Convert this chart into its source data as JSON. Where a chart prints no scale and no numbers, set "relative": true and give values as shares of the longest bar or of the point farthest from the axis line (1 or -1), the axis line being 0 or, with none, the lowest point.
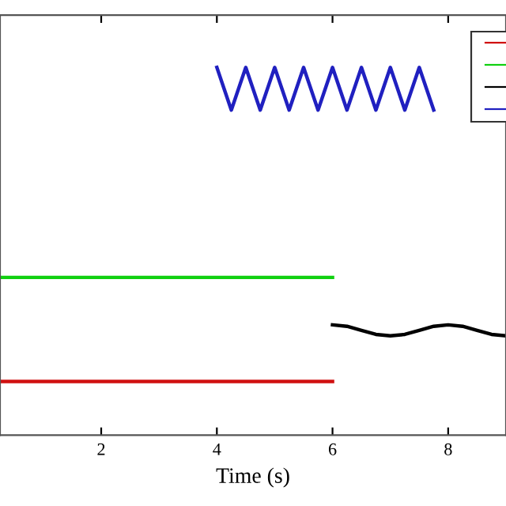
{
  "chart_data": {
    "type": "line",
    "relative": true,
    "xlabel": "Time (s)",
    "xlim": [
      0.25,
      9.0
    ],
    "xticks": [
      2,
      4,
      6,
      8
    ],
    "grid": false,
    "line_style": "solid",
    "series": [
      {
        "color": "#d01010",
        "x": [
          0.25,
          6.0
        ],
        "values": [
          0.146,
          0.146
        ]
      },
      {
        "color": "#10d010",
        "x": [
          0.25,
          6.0
        ],
        "values": [
          0.429,
          0.429
        ]
      },
      {
        "color": "#000000",
        "x": [
          6.0,
          6.25,
          6.5,
          6.75,
          7.0,
          7.25,
          7.5,
          7.75,
          8.0,
          8.25,
          8.5,
          8.75,
          9.0
        ],
        "values": [
          0.3,
          0.296,
          0.285,
          0.274,
          0.27,
          0.274,
          0.285,
          0.296,
          0.3,
          0.296,
          0.285,
          0.274,
          0.27
        ]
      },
      {
        "color": "#2020c0",
        "x": [
          4.0,
          4.125,
          4.25,
          4.375,
          4.5,
          4.625,
          4.75,
          4.875,
          5.0,
          5.125,
          5.25,
          5.375,
          5.5,
          5.625,
          5.75,
          5.875,
          6.0,
          6.125,
          6.25,
          6.375,
          6.5,
          6.625,
          6.75,
          6.875,
          7.0,
          7.125,
          7.25,
          7.375,
          7.5,
          7.625,
          7.75
        ],
        "values": [
          1.0,
          0.942,
          0.884,
          0.942,
          1.0,
          0.942,
          0.884,
          0.942,
          1.0,
          0.942,
          0.884,
          0.942,
          1.0,
          0.942,
          0.884,
          0.942,
          1.0,
          0.942,
          0.884,
          0.942,
          1.0,
          0.942,
          0.884,
          0.942,
          1.0,
          0.942,
          0.884,
          0.942,
          1.0,
          0.942,
          0.884
        ]
      }
    ]
  }
}
